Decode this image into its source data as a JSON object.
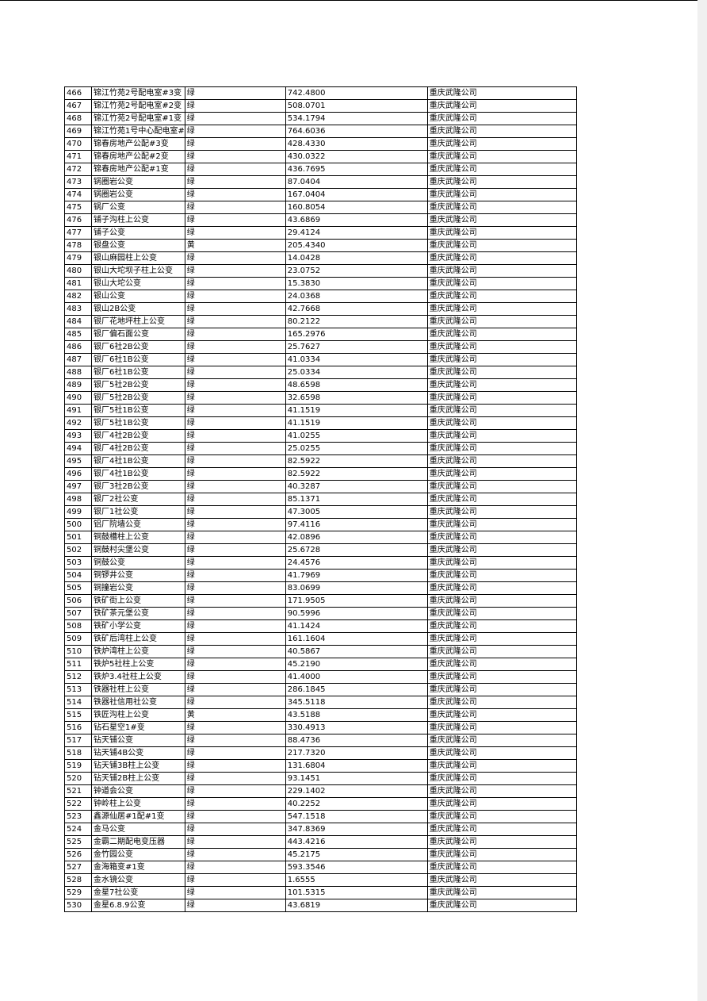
{
  "company": "重庆武隆公司",
  "rows": [
    [
      "466",
      "锦江竹苑2号配电室#3变",
      "绿",
      "742.4800"
    ],
    [
      "467",
      "锦江竹苑2号配电室#2变",
      "绿",
      "508.0701"
    ],
    [
      "468",
      "锦江竹苑2号配电室#1变",
      "绿",
      "534.1794"
    ],
    [
      "469",
      "锦江竹苑1号中心配电室#",
      "绿",
      "764.6036"
    ],
    [
      "470",
      "锦春房地产公配#3变",
      "绿",
      "428.4330"
    ],
    [
      "471",
      "锦春房地产公配#2变",
      "绿",
      "430.0322"
    ],
    [
      "472",
      "锦春房地产公配#1变",
      "绿",
      "436.7695"
    ],
    [
      "473",
      "锅圈岩公变",
      "绿",
      "87.0404"
    ],
    [
      "474",
      "锅圈岩公变",
      "绿",
      "167.0404"
    ],
    [
      "475",
      "锅厂公变",
      "绿",
      "160.8054"
    ],
    [
      "476",
      "铺子沟柱上公变",
      "绿",
      "43.6869"
    ],
    [
      "477",
      "铺子公变",
      "绿",
      "29.4124"
    ],
    [
      "478",
      "银盘公变",
      "黄",
      "205.4340"
    ],
    [
      "479",
      "银山麻园柱上公变",
      "绿",
      "14.0428"
    ],
    [
      "480",
      "银山大坨坝子柱上公变",
      "绿",
      "23.0752"
    ],
    [
      "481",
      "银山大坨公变",
      "绿",
      "15.3830"
    ],
    [
      "482",
      "银山公变",
      "绿",
      "24.0368"
    ],
    [
      "483",
      "银山2B公变",
      "绿",
      "42.7668"
    ],
    [
      "484",
      "银厂花地坪柱上公变",
      "绿",
      "80.2122"
    ],
    [
      "485",
      "银厂偏石面公变",
      "绿",
      "165.2976"
    ],
    [
      "486",
      "银厂6社2B公变",
      "绿",
      "25.7627"
    ],
    [
      "487",
      "银厂6社1B公变",
      "绿",
      "41.0334"
    ],
    [
      "488",
      "银厂6社1B公变",
      "绿",
      "25.0334"
    ],
    [
      "489",
      "银厂5社2B公变",
      "绿",
      "48.6598"
    ],
    [
      "490",
      "银厂5社2B公变",
      "绿",
      "32.6598"
    ],
    [
      "491",
      "银厂5社1B公变",
      "绿",
      "41.1519"
    ],
    [
      "492",
      "银厂5社1B公变",
      "绿",
      "41.1519"
    ],
    [
      "493",
      "银厂4社2B公变",
      "绿",
      "41.0255"
    ],
    [
      "494",
      "银厂4社2B公变",
      "绿",
      "25.0255"
    ],
    [
      "495",
      "银厂4社1B公变",
      "绿",
      "82.5922"
    ],
    [
      "496",
      "银厂4社1B公变",
      "绿",
      "82.5922"
    ],
    [
      "497",
      "银厂3社2B公变",
      "绿",
      "40.3287"
    ],
    [
      "498",
      "银厂2社公变",
      "绿",
      "85.1371"
    ],
    [
      "499",
      "银厂1社公变",
      "绿",
      "47.3005"
    ],
    [
      "500",
      "铝厂院墙公变",
      "绿",
      "97.4116"
    ],
    [
      "501",
      "铜鼓槽柱上公变",
      "绿",
      "42.0896"
    ],
    [
      "502",
      "铜鼓村尖堡公变",
      "绿",
      "25.6728"
    ],
    [
      "503",
      "铜鼓公变",
      "绿",
      "24.4576"
    ],
    [
      "504",
      "铜锣井公变",
      "绿",
      "41.7969"
    ],
    [
      "505",
      "铜撞岩公变",
      "绿",
      "83.0699"
    ],
    [
      "506",
      "铁矿街上公变",
      "绿",
      "171.9505"
    ],
    [
      "507",
      "铁矿茶元堡公变",
      "绿",
      "90.5996"
    ],
    [
      "508",
      "铁矿小学公变",
      "绿",
      "41.1424"
    ],
    [
      "509",
      "铁矿后湾柱上公变",
      "绿",
      "161.1604"
    ],
    [
      "510",
      "铁炉湾柱上公变",
      "绿",
      "40.5867"
    ],
    [
      "511",
      "铁炉5社柱上公变",
      "绿",
      "45.2190"
    ],
    [
      "512",
      "铁炉3.4社柱上公变",
      "绿",
      "41.4000"
    ],
    [
      "513",
      "铁器社柱上公变",
      "绿",
      "286.1845"
    ],
    [
      "514",
      "铁器社信用社公变",
      "绿",
      "345.5118"
    ],
    [
      "515",
      "铁匠沟柱上公变",
      "黄",
      "43.5188"
    ],
    [
      "516",
      "钻石星空1#变",
      "绿",
      "330.4913"
    ],
    [
      "517",
      "钻天铺公变",
      "绿",
      "88.4736"
    ],
    [
      "518",
      "钻天铺4B公变",
      "绿",
      "217.7320"
    ],
    [
      "519",
      "钻天铺3B柱上公变",
      "绿",
      "131.6804"
    ],
    [
      "520",
      "钻天铺2B柱上公变",
      "绿",
      "93.1451"
    ],
    [
      "521",
      "钟道会公变",
      "绿",
      "229.1402"
    ],
    [
      "522",
      "钟岭柱上公变",
      "绿",
      "40.2252"
    ],
    [
      "523",
      "鑫源仙居#1配#1变",
      "绿",
      "547.1518"
    ],
    [
      "524",
      "金马公变",
      "绿",
      "347.8369"
    ],
    [
      "525",
      "金霸二期配电变压器",
      "绿",
      "443.4216"
    ],
    [
      "526",
      "金竹园公变",
      "绿",
      "45.2175"
    ],
    [
      "527",
      "金海箱变#1变",
      "绿",
      "593.3546"
    ],
    [
      "528",
      "金水镜公变",
      "绿",
      "1.6555"
    ],
    [
      "529",
      "金星7社公变",
      "绿",
      "101.5315"
    ],
    [
      "530",
      "金星6.8.9公变",
      "绿",
      "43.6819"
    ]
  ]
}
